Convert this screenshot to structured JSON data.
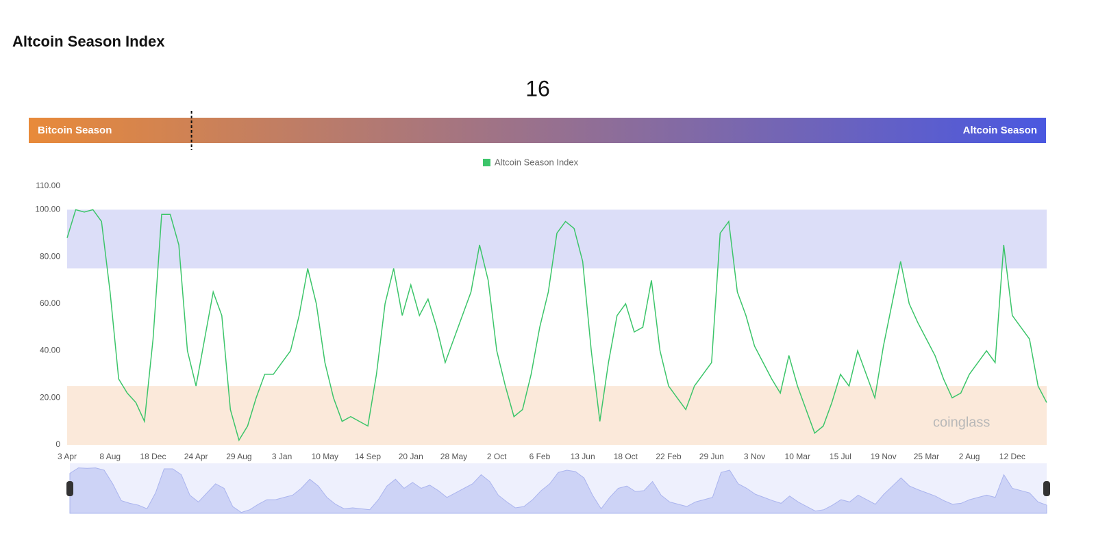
{
  "title": "Altcoin Season Index",
  "value": 16,
  "gauge": {
    "range": [
      0,
      100
    ],
    "left_label": "Bitcoin Season",
    "right_label": "Altcoin Season",
    "colors": [
      "#e88a3a",
      "#4a58e0"
    ]
  },
  "chart_data": {
    "type": "line",
    "categories": [
      "3 Apr",
      null,
      null,
      null,
      null,
      "8 Aug",
      null,
      null,
      null,
      null,
      "18 Dec",
      null,
      null,
      null,
      null,
      "24 Apr",
      null,
      null,
      null,
      null,
      "29 Aug",
      null,
      null,
      null,
      null,
      "3 Jan",
      null,
      null,
      null,
      null,
      "10 May",
      null,
      null,
      null,
      null,
      "14 Sep",
      null,
      null,
      null,
      null,
      "20 Jan",
      null,
      null,
      null,
      null,
      "28 May",
      null,
      null,
      null,
      null,
      "2 Oct",
      null,
      null,
      null,
      null,
      "6 Feb",
      null,
      null,
      null,
      null,
      "13 Jun",
      null,
      null,
      null,
      null,
      "18 Oct",
      null,
      null,
      null,
      null,
      "22 Feb",
      null,
      null,
      null,
      null,
      "29 Jun",
      null,
      null,
      null,
      null,
      "3 Nov",
      null,
      null,
      null,
      null,
      "10 Mar",
      null,
      null,
      null,
      null,
      "15 Jul",
      null,
      null,
      null,
      null,
      "19 Nov",
      null,
      null,
      null,
      null,
      "25 Mar",
      null,
      null,
      null,
      null,
      "2 Aug",
      null,
      null,
      null,
      null,
      "12 Dec",
      null,
      null,
      null,
      null
    ],
    "series": [
      {
        "name": "Altcoin Season Index",
        "color": "#3cc56a",
        "values": [
          88,
          100,
          99,
          100,
          95,
          65,
          28,
          22,
          18,
          10,
          45,
          98,
          98,
          85,
          40,
          25,
          45,
          65,
          55,
          15,
          2,
          8,
          20,
          30,
          30,
          35,
          40,
          55,
          75,
          60,
          35,
          20,
          10,
          12,
          10,
          8,
          30,
          60,
          75,
          55,
          68,
          55,
          62,
          50,
          35,
          45,
          55,
          65,
          85,
          70,
          40,
          25,
          12,
          15,
          30,
          50,
          65,
          90,
          95,
          92,
          78,
          40,
          10,
          35,
          55,
          60,
          48,
          50,
          70,
          40,
          25,
          20,
          15,
          25,
          30,
          35,
          90,
          95,
          65,
          55,
          42,
          35,
          28,
          22,
          38,
          25,
          15,
          5,
          8,
          18,
          30,
          25,
          40,
          30,
          20,
          42,
          60,
          78,
          60,
          52,
          45,
          38,
          28,
          20,
          22,
          30,
          35,
          40,
          35,
          85,
          55,
          50,
          45,
          25,
          18
        ]
      }
    ],
    "ylim": [
      0,
      110
    ],
    "yticks": [
      0,
      {
        "value": 20,
        "label": "20.00"
      },
      {
        "value": 40,
        "label": "40.00"
      },
      {
        "value": 60,
        "label": "60.00"
      },
      {
        "value": 80,
        "label": "80.00"
      },
      {
        "value": 100,
        "label": "100.00"
      },
      {
        "value": 110,
        "label": "110.00"
      }
    ],
    "bands": [
      {
        "from": 75,
        "to": 100,
        "color": "#dcdef8"
      },
      {
        "from": 0,
        "to": 25,
        "color": "#fbe9da"
      }
    ],
    "watermark": "coinglass",
    "navigator": true
  }
}
